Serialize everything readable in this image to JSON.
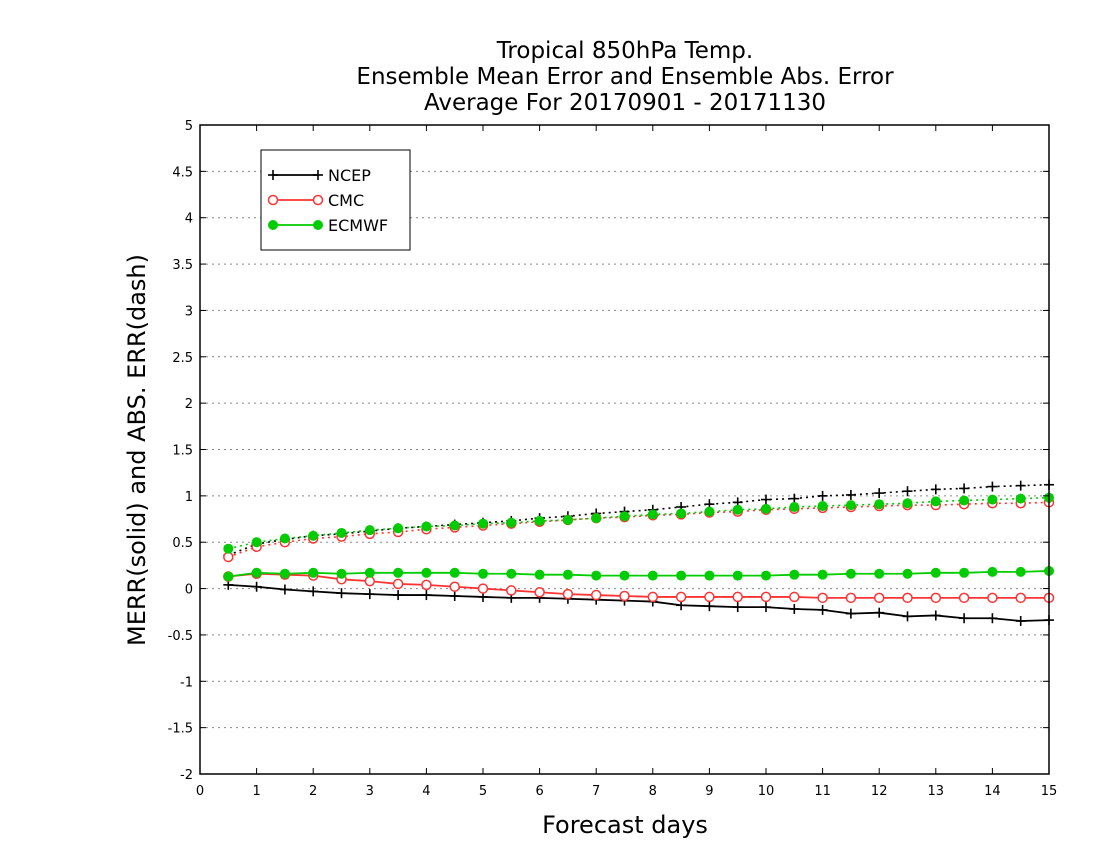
{
  "chart_data": {
    "type": "line",
    "title_lines": [
      "Tropical 850hPa Temp.",
      "Ensemble Mean Error and Ensemble Abs. Error",
      "Average For 20170901 - 20171130"
    ],
    "xlabel": "Forecast days",
    "ylabel": "MERR(solid) and ABS. ERR(dash)",
    "xlim": [
      0,
      15
    ],
    "ylim": [
      -2,
      5
    ],
    "xticks": [
      0,
      1,
      2,
      3,
      4,
      5,
      6,
      7,
      8,
      9,
      10,
      11,
      12,
      13,
      14,
      15
    ],
    "yticks": [
      -2,
      -1.5,
      -1,
      -0.5,
      0,
      0.5,
      1,
      1.5,
      2,
      2.5,
      3,
      3.5,
      4,
      4.5,
      5
    ],
    "ytick_labels": [
      "-2",
      "-1.5",
      "-1",
      "-0.5",
      "0",
      "0.5",
      "1",
      "1.5",
      "2",
      "2.5",
      "3",
      "3.5",
      "4",
      "4.5",
      "5"
    ],
    "grid": "horizontal dotted",
    "legend_position": "top-left",
    "x": [
      0.5,
      1,
      1.5,
      2,
      2.5,
      3,
      3.5,
      4,
      4.5,
      5,
      5.5,
      6,
      6.5,
      7,
      7.5,
      8,
      8.5,
      9,
      9.5,
      10,
      10.5,
      11,
      11.5,
      12,
      12.5,
      13,
      13.5,
      14,
      14.5,
      15
    ],
    "series": [
      {
        "name": "NCEP",
        "color": "#000000",
        "marker": "plus",
        "merr": [
          0.04,
          0.02,
          -0.01,
          -0.03,
          -0.05,
          -0.06,
          -0.07,
          -0.07,
          -0.08,
          -0.09,
          -0.1,
          -0.1,
          -0.11,
          -0.12,
          -0.13,
          -0.14,
          -0.18,
          -0.19,
          -0.2,
          -0.2,
          -0.22,
          -0.23,
          -0.27,
          -0.26,
          -0.3,
          -0.29,
          -0.32,
          -0.32,
          -0.35,
          -0.34
        ],
        "abs_err": [
          0.36,
          0.48,
          0.53,
          0.57,
          0.59,
          0.62,
          0.65,
          0.67,
          0.69,
          0.71,
          0.73,
          0.76,
          0.78,
          0.81,
          0.83,
          0.85,
          0.88,
          0.91,
          0.93,
          0.96,
          0.97,
          1.0,
          1.01,
          1.03,
          1.05,
          1.07,
          1.08,
          1.1,
          1.11,
          1.12
        ]
      },
      {
        "name": "CMC",
        "color": "#ff3333",
        "marker": "open-circle",
        "merr": [
          0.13,
          0.16,
          0.15,
          0.14,
          0.1,
          0.08,
          0.05,
          0.04,
          0.02,
          0.0,
          -0.02,
          -0.04,
          -0.06,
          -0.07,
          -0.08,
          -0.09,
          -0.09,
          -0.09,
          -0.09,
          -0.09,
          -0.09,
          -0.1,
          -0.1,
          -0.1,
          -0.1,
          -0.1,
          -0.1,
          -0.1,
          -0.1,
          -0.1
        ],
        "abs_err": [
          0.34,
          0.45,
          0.5,
          0.54,
          0.56,
          0.59,
          0.61,
          0.64,
          0.66,
          0.68,
          0.7,
          0.72,
          0.74,
          0.76,
          0.77,
          0.79,
          0.8,
          0.82,
          0.83,
          0.85,
          0.86,
          0.87,
          0.88,
          0.89,
          0.9,
          0.9,
          0.91,
          0.92,
          0.92,
          0.93
        ]
      },
      {
        "name": "ECMWF",
        "color": "#00cc00",
        "marker": "filled-circle",
        "merr": [
          0.13,
          0.17,
          0.16,
          0.17,
          0.16,
          0.17,
          0.17,
          0.17,
          0.17,
          0.16,
          0.16,
          0.15,
          0.15,
          0.14,
          0.14,
          0.14,
          0.14,
          0.14,
          0.14,
          0.14,
          0.15,
          0.15,
          0.16,
          0.16,
          0.16,
          0.17,
          0.17,
          0.18,
          0.18,
          0.19
        ],
        "abs_err": [
          0.43,
          0.5,
          0.54,
          0.57,
          0.6,
          0.63,
          0.65,
          0.67,
          0.68,
          0.7,
          0.71,
          0.73,
          0.74,
          0.76,
          0.78,
          0.8,
          0.81,
          0.83,
          0.85,
          0.86,
          0.88,
          0.89,
          0.9,
          0.91,
          0.92,
          0.94,
          0.95,
          0.96,
          0.97,
          0.98
        ]
      }
    ]
  }
}
